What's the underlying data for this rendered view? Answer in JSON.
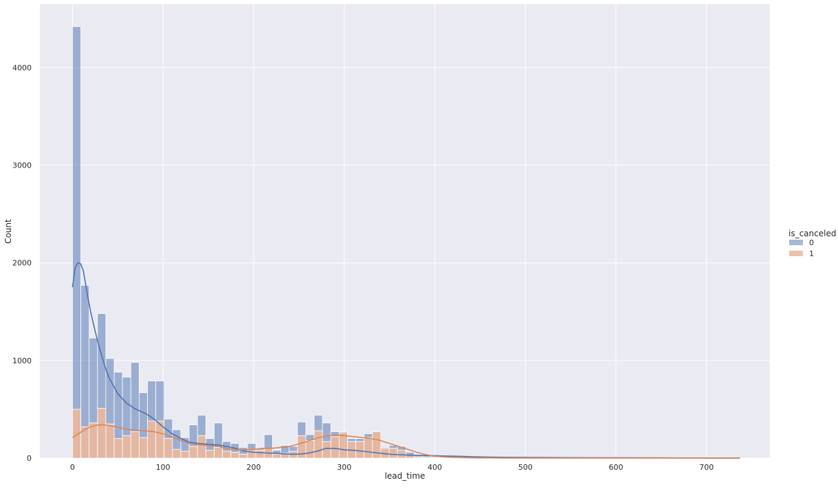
{
  "chart_data": {
    "type": "histogram",
    "stacked": true,
    "xlabel": "lead_time",
    "ylabel": "Count",
    "xlim": [
      -36,
      770
    ],
    "ylim": [
      0,
      4650
    ],
    "x_ticks": [
      0,
      100,
      200,
      300,
      400,
      500,
      600,
      700
    ],
    "y_ticks": [
      0,
      1000,
      2000,
      3000,
      4000
    ],
    "grid": true,
    "background": "#eaeaf2",
    "legend": {
      "title": "is_canceled",
      "placement": "right",
      "entries": [
        {
          "label": "0",
          "color": "#4c72b0"
        },
        {
          "label": "1",
          "color": "#dd8452"
        }
      ]
    },
    "bins": {
      "start": 0,
      "width": 9.2,
      "totals": [
        4420,
        1770,
        1230,
        1480,
        1020,
        880,
        830,
        980,
        670,
        790,
        790,
        400,
        290,
        210,
        340,
        440,
        200,
        360,
        170,
        150,
        110,
        150,
        100,
        240,
        80,
        130,
        120,
        370,
        240,
        440,
        360,
        270,
        270,
        200,
        200,
        250,
        250,
        110,
        130,
        120,
        60,
        30,
        25,
        20,
        12,
        8,
        6,
        5,
        4,
        4,
        3,
        3,
        3,
        2,
        2,
        2,
        2,
        1,
        1,
        1,
        1,
        1,
        1,
        1,
        1,
        1,
        1,
        1,
        1,
        1,
        1,
        1,
        1,
        1,
        1,
        1,
        1,
        1,
        1,
        1
      ],
      "canceled": [
        500,
        320,
        360,
        510,
        350,
        200,
        230,
        270,
        210,
        380,
        380,
        200,
        90,
        70,
        120,
        230,
        80,
        110,
        70,
        60,
        40,
        90,
        80,
        100,
        40,
        50,
        70,
        230,
        180,
        280,
        170,
        220,
        260,
        170,
        170,
        210,
        270,
        100,
        100,
        80,
        30,
        12,
        10,
        8,
        5,
        3,
        2,
        2,
        1,
        1,
        1,
        1,
        1,
        0,
        0,
        0,
        0,
        0,
        0,
        0,
        0,
        0,
        0,
        0,
        0,
        0,
        0,
        0,
        0,
        0,
        0,
        0,
        0,
        0,
        0,
        0,
        0,
        0,
        0,
        0
      ]
    },
    "kde": {
      "series": [
        {
          "name": "0",
          "color": "#4c72b0",
          "x": [
            0,
            3,
            6,
            9,
            12,
            16,
            20,
            25,
            30,
            35,
            40,
            50,
            60,
            70,
            80,
            90,
            100,
            110,
            120,
            130,
            140,
            150,
            160,
            170,
            180,
            190,
            200,
            210,
            220,
            230,
            240,
            250,
            260,
            270,
            280,
            290,
            300,
            310,
            320,
            330,
            340,
            350,
            360,
            370,
            380,
            390,
            400,
            410,
            420,
            430,
            440,
            450,
            460,
            480,
            500,
            550,
            600,
            650,
            700,
            737
          ],
          "y": [
            1750,
            1950,
            2000,
            1990,
            1920,
            1700,
            1500,
            1300,
            1120,
            960,
            830,
            660,
            560,
            500,
            460,
            400,
            320,
            250,
            200,
            160,
            150,
            140,
            135,
            120,
            100,
            70,
            60,
            55,
            50,
            45,
            40,
            40,
            50,
            70,
            100,
            100,
            85,
            80,
            70,
            60,
            50,
            40,
            35,
            30,
            28,
            27,
            25,
            22,
            20,
            18,
            15,
            12,
            10,
            8,
            6,
            4,
            3,
            2,
            1,
            1
          ]
        },
        {
          "name": "1",
          "color": "#dd8452",
          "x": [
            0,
            5,
            10,
            15,
            20,
            25,
            30,
            35,
            40,
            45,
            50,
            60,
            70,
            80,
            90,
            100,
            110,
            120,
            130,
            140,
            150,
            160,
            170,
            180,
            190,
            200,
            210,
            220,
            230,
            240,
            250,
            260,
            270,
            280,
            290,
            300,
            310,
            320,
            330,
            340,
            350,
            360,
            370,
            380,
            390,
            400,
            410,
            420,
            430,
            440,
            450,
            460,
            480,
            500,
            550,
            600,
            650,
            700,
            737
          ],
          "y": [
            210,
            240,
            270,
            300,
            320,
            335,
            340,
            340,
            335,
            325,
            315,
            295,
            285,
            280,
            270,
            250,
            215,
            180,
            150,
            135,
            130,
            120,
            100,
            85,
            85,
            90,
            100,
            100,
            110,
            120,
            145,
            175,
            205,
            225,
            235,
            230,
            220,
            210,
            200,
            180,
            150,
            120,
            90,
            60,
            35,
            20,
            12,
            8,
            5,
            3,
            2,
            2,
            1,
            1,
            0,
            0,
            0,
            0,
            0
          ]
        }
      ]
    }
  }
}
